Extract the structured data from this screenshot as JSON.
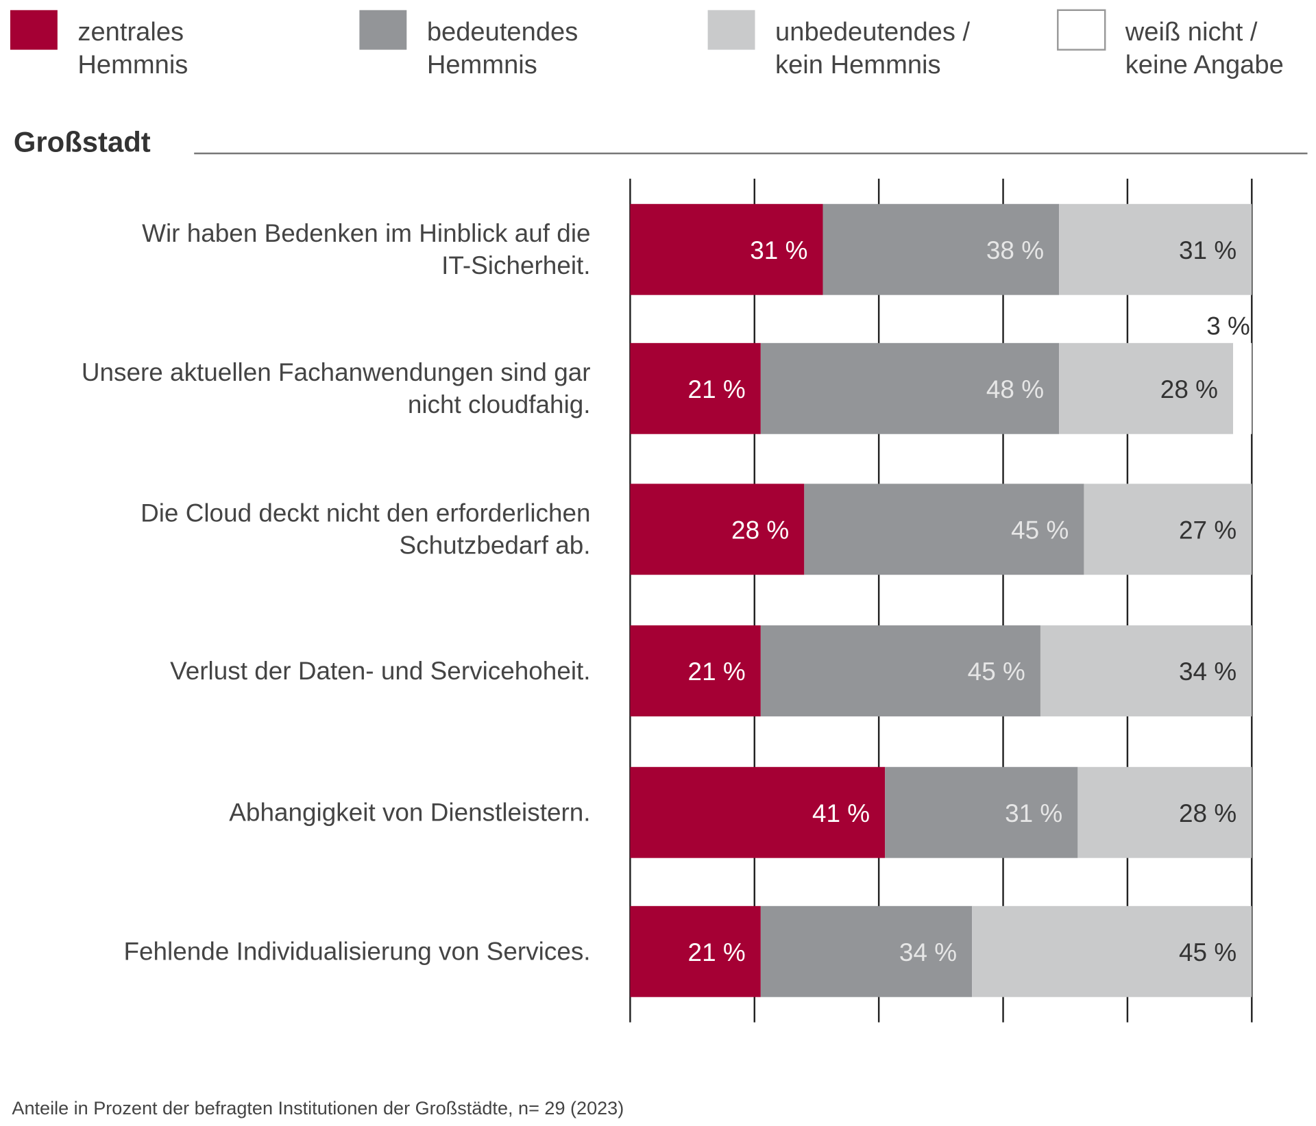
{
  "chart_data": {
    "type": "bar",
    "orientation": "horizontal",
    "stacked": true,
    "title": "Großstadt",
    "xlim": [
      0,
      100
    ],
    "grid": true,
    "legend_position": "top",
    "series": [
      {
        "name": "zentrales Hemmnis",
        "name_lines": [
          "zentrales",
          "Hemmnis"
        ],
        "color": "#a50034",
        "label_color": "#ffffff",
        "values": [
          31,
          21,
          28,
          21,
          41,
          21
        ]
      },
      {
        "name": "bedeutendes Hemmnis",
        "name_lines": [
          "bedeutendes",
          "Hemmnis"
        ],
        "color": "#939598",
        "label_color": "#e6e6e6",
        "values": [
          38,
          48,
          45,
          45,
          31,
          34
        ]
      },
      {
        "name": "unbedeutendes / kein Hemmnis",
        "name_lines": [
          "unbedeutendes /",
          "kein Hemmnis"
        ],
        "color": "#c9cacb",
        "label_color": "#333333",
        "values": [
          31,
          28,
          27,
          34,
          28,
          45
        ]
      },
      {
        "name": "weiß nicht / keine Angabe",
        "name_lines": [
          "weiß nicht /",
          "keine Angabe"
        ],
        "color": "#ffffff",
        "label_color": "#333333",
        "values": [
          0,
          3,
          0,
          0,
          0,
          0
        ]
      }
    ],
    "categories": [
      [
        "Wir haben Bedenken im Hinblick auf die",
        "IT-Sicherheit."
      ],
      [
        "Unsere aktuellen Fachanwendungen sind gar",
        "nicht cloudfahig."
      ],
      [
        "Die Cloud deckt nicht den erforderlichen",
        "Schutzbedarf ab."
      ],
      [
        "Verlust der Daten- und Servicehoheit."
      ],
      [
        "Abhangigkeit von Dienstleistern."
      ],
      [
        "Fehlende Individualisierung von Services."
      ]
    ],
    "value_suffix": " %",
    "footnote": "Anteile in Prozent der befragten Institutionen der Großstädte, n= 29 (2023)"
  }
}
